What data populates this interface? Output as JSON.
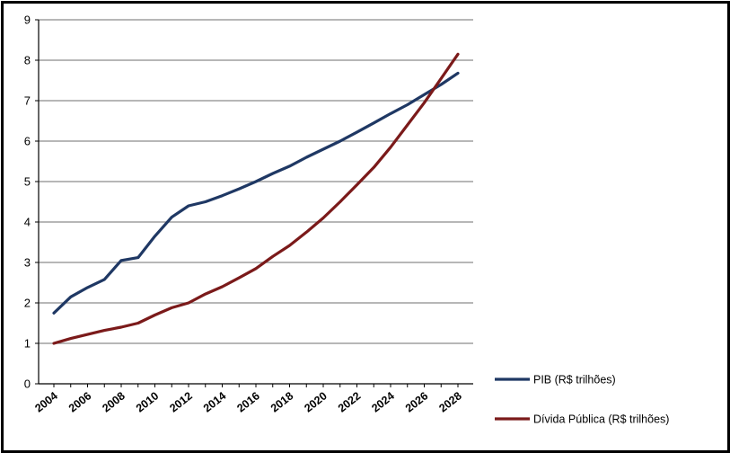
{
  "chart_data": {
    "type": "line",
    "x": [
      2004,
      2005,
      2006,
      2007,
      2008,
      2009,
      2010,
      2011,
      2012,
      2013,
      2014,
      2015,
      2016,
      2017,
      2018,
      2019,
      2020,
      2021,
      2022,
      2023,
      2024,
      2025,
      2026,
      2027,
      2028
    ],
    "x_tick_labels": [
      "2004",
      "2006",
      "2008",
      "2010",
      "2012",
      "2014",
      "2016",
      "2018",
      "2020",
      "2022",
      "2024",
      "2026",
      "2028"
    ],
    "ylim": [
      0,
      9
    ],
    "y_ticks": [
      0,
      1,
      2,
      3,
      4,
      5,
      6,
      7,
      8,
      9
    ],
    "grid": true,
    "legend_position": "bottom-right",
    "series": [
      {
        "name": "PIB (R$ trilhões)",
        "color": "#1f3864",
        "values": [
          1.75,
          2.15,
          2.38,
          2.58,
          3.05,
          3.12,
          3.65,
          4.12,
          4.4,
          4.5,
          4.65,
          4.82,
          5.0,
          5.2,
          5.38,
          5.6,
          5.8,
          6.0,
          6.22,
          6.45,
          6.68,
          6.9,
          7.15,
          7.4,
          7.68
        ]
      },
      {
        "name": "Dívida Pública (R$ trilhões)",
        "color": "#7b1a1a",
        "values": [
          1.0,
          1.12,
          1.22,
          1.32,
          1.4,
          1.5,
          1.7,
          1.88,
          2.0,
          2.22,
          2.4,
          2.62,
          2.85,
          3.15,
          3.42,
          3.75,
          4.1,
          4.5,
          4.92,
          5.35,
          5.85,
          6.4,
          6.95,
          7.55,
          8.15
        ]
      }
    ]
  }
}
